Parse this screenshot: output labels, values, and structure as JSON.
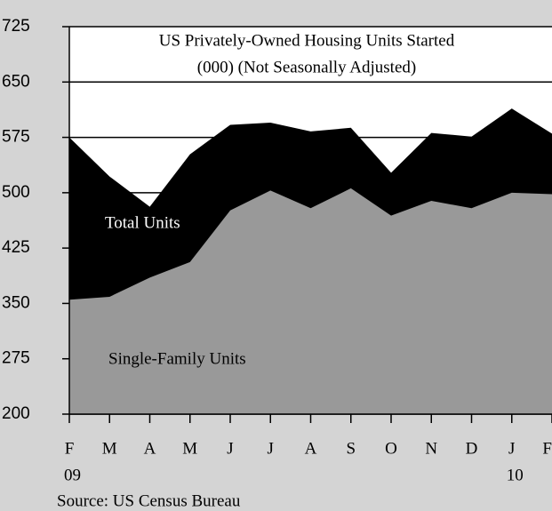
{
  "chart_data": {
    "type": "area",
    "title_lines": [
      "US Privately-Owned Housing Units Started",
      "(000) (Not Seasonally Adjusted)"
    ],
    "categories": [
      "F",
      "M",
      "A",
      "M",
      "J",
      "J",
      "A",
      "S",
      "O",
      "N",
      "D",
      "J",
      "F"
    ],
    "year_labels": [
      "09",
      null,
      null,
      null,
      null,
      null,
      null,
      null,
      null,
      null,
      null,
      "10",
      null
    ],
    "series": [
      {
        "name": "Total Units",
        "color": "#000000",
        "values": [
          575,
          522,
          481,
          552,
          592,
          595,
          583,
          588,
          527,
          581,
          576,
          614,
          580
        ]
      },
      {
        "name": "Single-Family Units",
        "color": "#999999",
        "values": [
          355,
          359,
          385,
          406,
          476,
          503,
          479,
          506,
          469,
          489,
          479,
          500,
          498
        ]
      }
    ],
    "ylim": [
      200,
      725
    ],
    "yticks": [
      200,
      275,
      350,
      425,
      500,
      575,
      650,
      725
    ],
    "grid": true,
    "source": "Source: US Census Bureau"
  }
}
